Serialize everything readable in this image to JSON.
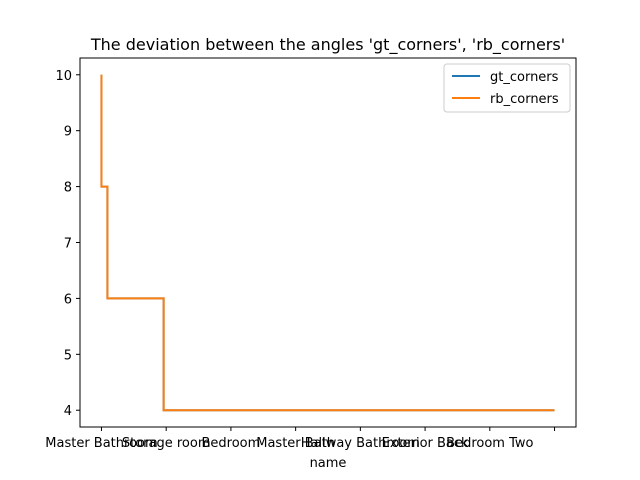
{
  "chart_data": {
    "type": "line",
    "title": "The deviation between the angles 'gt_corners', 'rb_corners'",
    "xlabel": "name",
    "ylabel": "",
    "x_tick_labels": [
      "Master Bathroom",
      "Storage room",
      "Bedroom",
      "Master Bath",
      "Hallway Bathroom",
      "Exterior Back",
      "Bedroom Two",
      ""
    ],
    "x_tick_positions": [
      0,
      76,
      152,
      228,
      304,
      380,
      456,
      532
    ],
    "xlim": [
      -25.2,
      557.2
    ],
    "ylim": [
      3.7,
      10.3
    ],
    "y_ticks": [
      4,
      5,
      6,
      7,
      8,
      9,
      10
    ],
    "grid": false,
    "legend_position": "top-right",
    "series": [
      {
        "name": "gt_corners",
        "color": "#1f77b4",
        "points": [
          [
            0,
            10
          ],
          [
            0,
            8
          ],
          [
            7,
            8
          ],
          [
            7,
            6
          ],
          [
            73,
            6
          ],
          [
            73,
            4
          ],
          [
            532,
            4
          ]
        ]
      },
      {
        "name": "rb_corners",
        "color": "#ff7f0e",
        "points": [
          [
            0,
            10
          ],
          [
            0,
            8
          ],
          [
            7,
            8
          ],
          [
            7,
            6
          ],
          [
            73,
            6
          ],
          [
            73,
            4
          ],
          [
            532,
            4
          ]
        ]
      }
    ]
  }
}
